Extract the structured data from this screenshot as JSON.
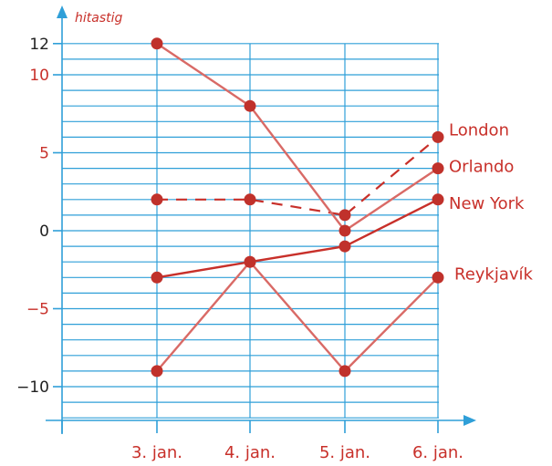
{
  "chart_data": {
    "type": "line",
    "ylabel": "hitastig",
    "xlabel": "",
    "categories": [
      "3. jan.",
      "4. jan.",
      "5. jan.",
      "6. jan."
    ],
    "ylim": [
      -12,
      12
    ],
    "y_ticks": [
      {
        "value": 12,
        "label": "12",
        "color": "#222222"
      },
      {
        "value": 10,
        "label": "10",
        "color": "#c8302a"
      },
      {
        "value": 5,
        "label": "5",
        "color": "#c8302a"
      },
      {
        "value": 0,
        "label": "0",
        "color": "#222222"
      },
      {
        "value": -5,
        "label": "−5",
        "color": "#c8302a"
      },
      {
        "value": -10,
        "label": "−10",
        "color": "#222222"
      }
    ],
    "grid": true,
    "series": [
      {
        "name": "London",
        "values": [
          2,
          2,
          1,
          6
        ],
        "style": "dashed",
        "color": "#c8302a"
      },
      {
        "name": "Orlando",
        "values": [
          12,
          8,
          0,
          4
        ],
        "style": "solid",
        "color": "#d96a66"
      },
      {
        "name": "New York",
        "values": [
          -3,
          -2,
          -1,
          2
        ],
        "style": "solid",
        "color": "#c8302a"
      },
      {
        "name": "Reykjavík",
        "values": [
          -9,
          -2,
          -9,
          -3
        ],
        "style": "solid",
        "color": "#d96a66"
      }
    ],
    "colors": {
      "grid": "#2f9fd8",
      "axis": "#2f9fd8",
      "point": "#c0312b"
    }
  }
}
